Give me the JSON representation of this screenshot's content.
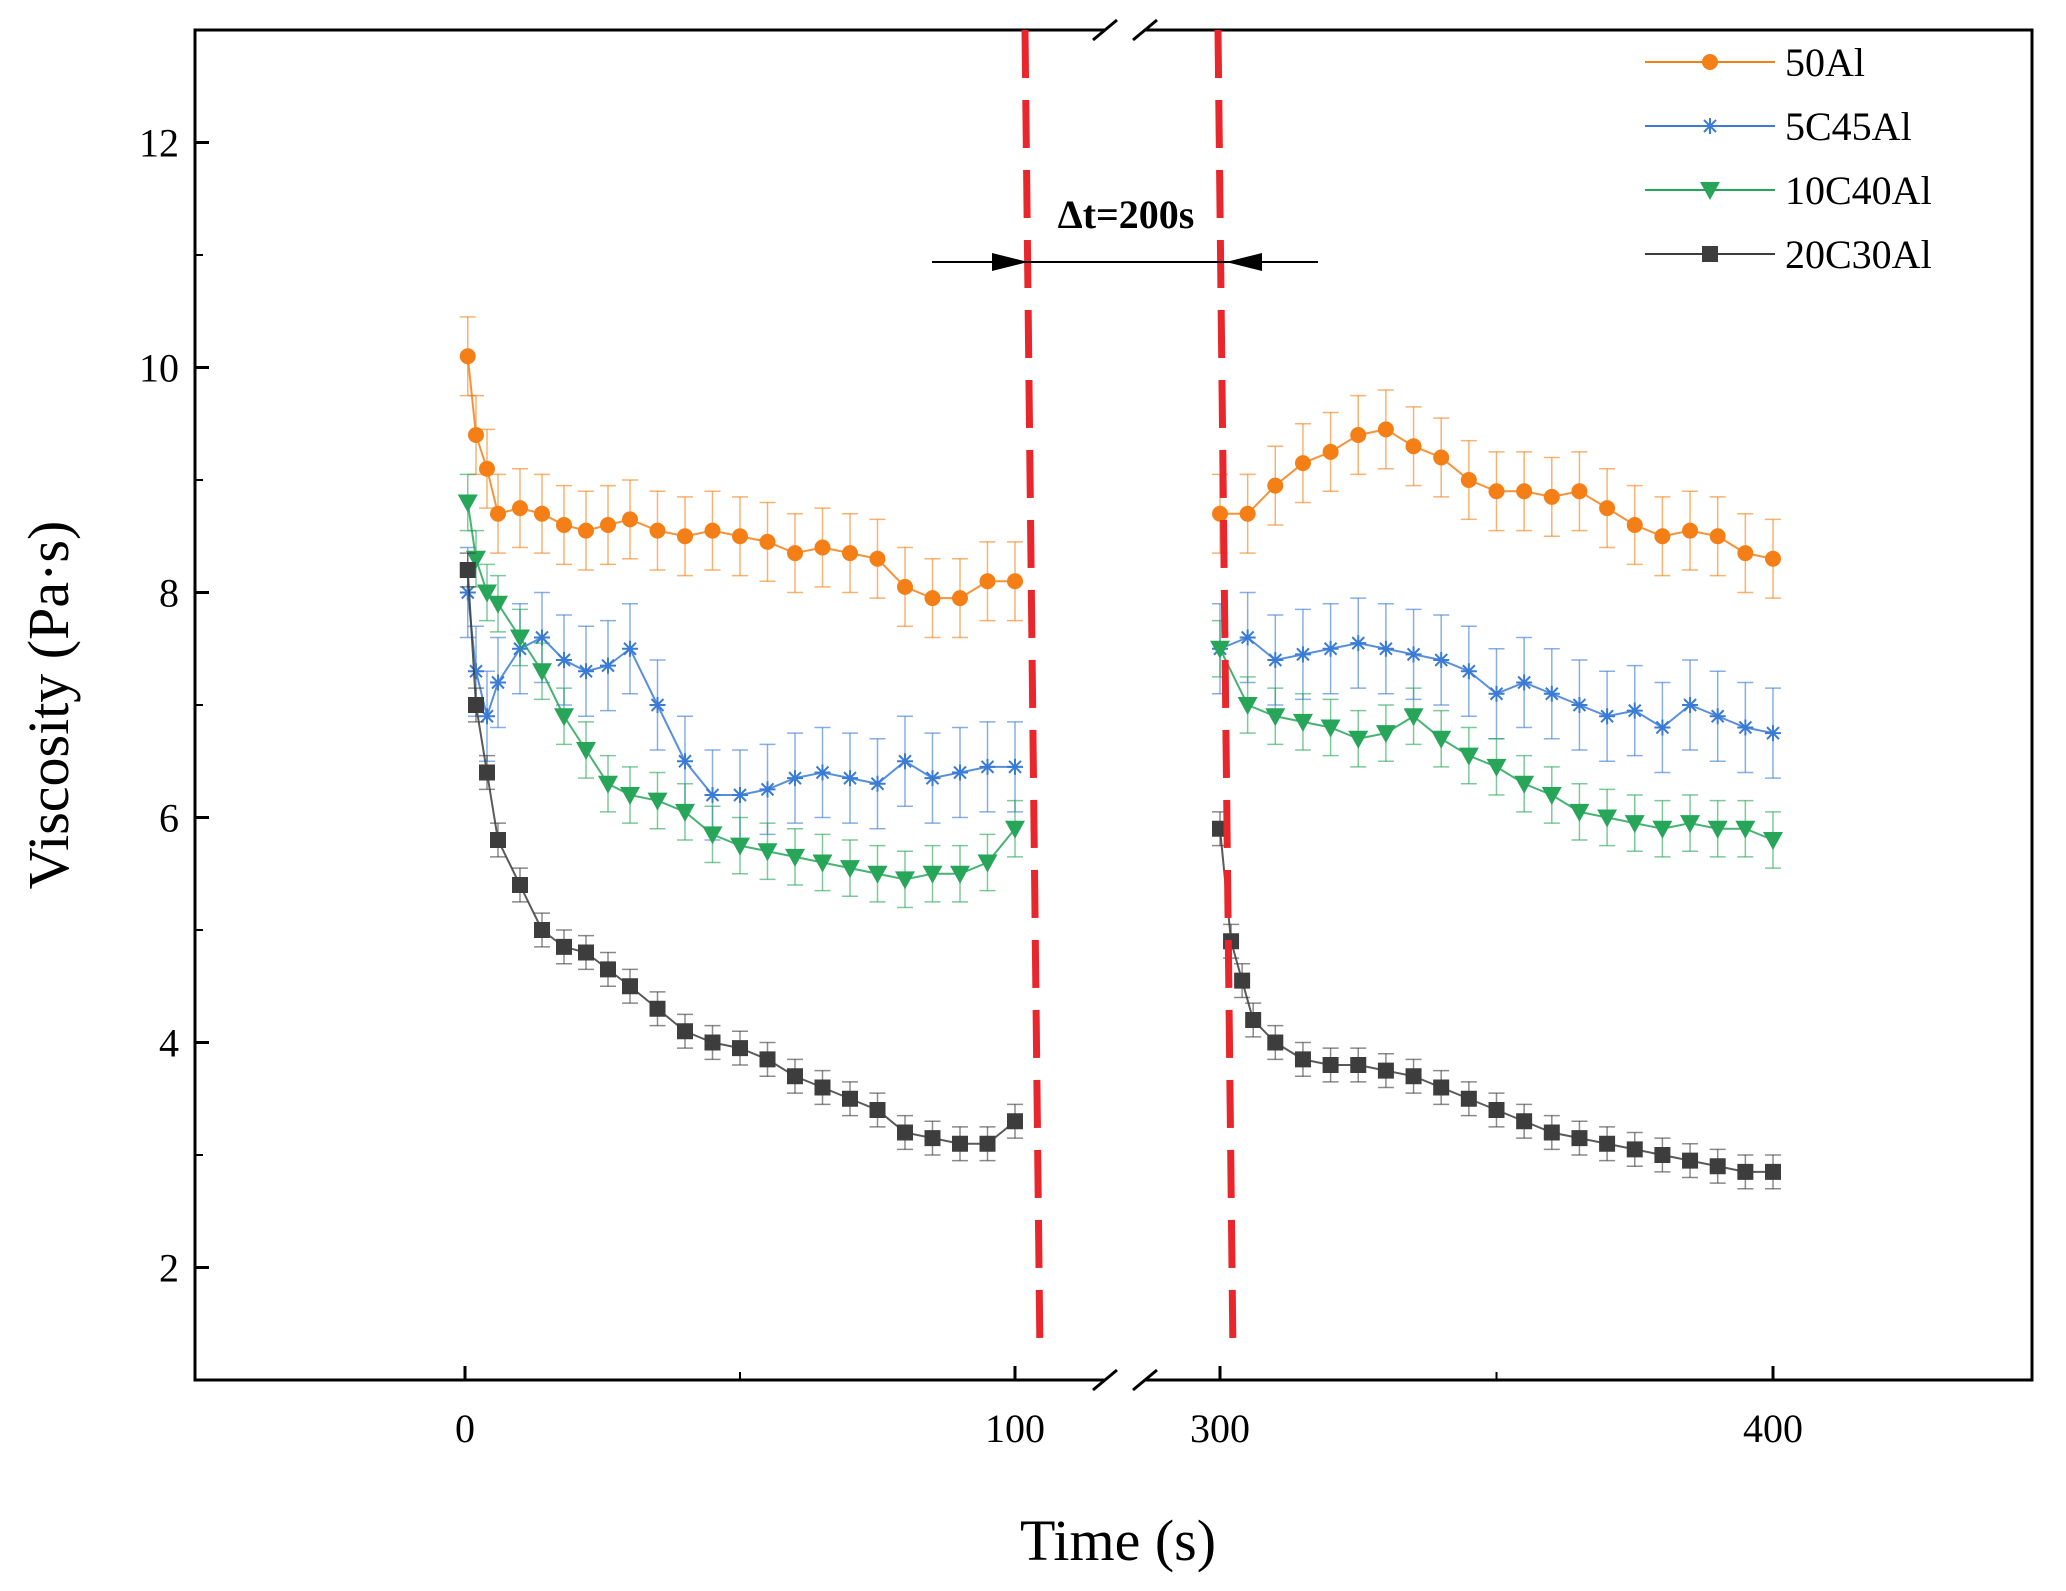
{
  "chart_data": {
    "type": "scatter",
    "xlabel": "Time (s)",
    "ylabel": "Viscosity (Pa·s)",
    "broken_x_axis": true,
    "x_segments": [
      {
        "range": [
          -50,
          105
        ],
        "ticks": [
          0,
          100
        ]
      },
      {
        "range": [
          300,
          445
        ],
        "ticks": [
          300,
          400
        ]
      }
    ],
    "x_tick_labels": [
      "0",
      "100",
      "300",
      "400"
    ],
    "ylim": [
      1,
      13
    ],
    "y_ticks": [
      2,
      4,
      6,
      8,
      10,
      12
    ],
    "y_tick_labels": [
      "2",
      "4",
      "6",
      "8",
      "10",
      "12"
    ],
    "grid": false,
    "legend_position": "top-right",
    "annotation": {
      "text": "Δt=200s",
      "marker_times": [
        100,
        300
      ]
    },
    "colors": {
      "annotation_line": "#e8262b",
      "arrows": "#000000"
    },
    "series": [
      {
        "name": "50Al",
        "marker": "circle",
        "color": "#f47f16",
        "error_bar": 0.35,
        "x": [
          0.5,
          2,
          4,
          6,
          10,
          14,
          18,
          22,
          26,
          30,
          35,
          40,
          45,
          50,
          55,
          60,
          65,
          70,
          75,
          80,
          85,
          90,
          95,
          100,
          300,
          305,
          310,
          315,
          320,
          325,
          330,
          335,
          340,
          345,
          350,
          355,
          360,
          365,
          370,
          375,
          380,
          385,
          390,
          395,
          400
        ],
        "y": [
          10.1,
          9.4,
          9.1,
          8.7,
          8.75,
          8.7,
          8.6,
          8.55,
          8.6,
          8.65,
          8.55,
          8.5,
          8.55,
          8.5,
          8.45,
          8.35,
          8.4,
          8.35,
          8.3,
          8.05,
          7.95,
          7.95,
          8.1,
          8.1,
          8.7,
          8.7,
          8.95,
          9.15,
          9.25,
          9.4,
          9.45,
          9.3,
          9.2,
          9.0,
          8.9,
          8.9,
          8.85,
          8.9,
          8.75,
          8.6,
          8.5,
          8.55,
          8.5,
          8.35,
          8.3
        ]
      },
      {
        "name": "5C45Al",
        "marker": "asterisk",
        "color": "#3a7bd5",
        "error_bar": 0.4,
        "x": [
          0.5,
          2,
          4,
          6,
          10,
          14,
          18,
          22,
          26,
          30,
          35,
          40,
          45,
          50,
          55,
          60,
          65,
          70,
          75,
          80,
          85,
          90,
          95,
          100,
          300,
          305,
          310,
          315,
          320,
          325,
          330,
          335,
          340,
          345,
          350,
          355,
          360,
          365,
          370,
          375,
          380,
          385,
          390,
          395,
          400
        ],
        "y": [
          8.0,
          7.3,
          6.9,
          7.2,
          7.5,
          7.6,
          7.4,
          7.3,
          7.35,
          7.5,
          7.0,
          6.5,
          6.2,
          6.2,
          6.25,
          6.35,
          6.4,
          6.35,
          6.3,
          6.5,
          6.35,
          6.4,
          6.45,
          6.45,
          7.5,
          7.6,
          7.4,
          7.45,
          7.5,
          7.55,
          7.5,
          7.45,
          7.4,
          7.3,
          7.1,
          7.2,
          7.1,
          7.0,
          6.9,
          6.95,
          6.8,
          7.0,
          6.9,
          6.8,
          6.75
        ]
      },
      {
        "name": "10C40Al",
        "marker": "triangle-down",
        "color": "#27a65a",
        "error_bar": 0.25,
        "x": [
          0.5,
          2,
          4,
          6,
          10,
          14,
          18,
          22,
          26,
          30,
          35,
          40,
          45,
          50,
          55,
          60,
          65,
          70,
          75,
          80,
          85,
          90,
          95,
          100,
          300,
          305,
          310,
          315,
          320,
          325,
          330,
          335,
          340,
          345,
          350,
          355,
          360,
          365,
          370,
          375,
          380,
          385,
          390,
          395,
          400
        ],
        "y": [
          8.8,
          8.3,
          8.0,
          7.9,
          7.6,
          7.3,
          6.9,
          6.6,
          6.3,
          6.2,
          6.15,
          6.05,
          5.85,
          5.75,
          5.7,
          5.65,
          5.6,
          5.55,
          5.5,
          5.45,
          5.5,
          5.5,
          5.6,
          5.9,
          7.5,
          7.0,
          6.9,
          6.85,
          6.8,
          6.7,
          6.75,
          6.9,
          6.7,
          6.55,
          6.45,
          6.3,
          6.2,
          6.05,
          6.0,
          5.95,
          5.9,
          5.95,
          5.9,
          5.9,
          5.8
        ]
      },
      {
        "name": "20C30Al",
        "marker": "square",
        "color": "#3d3d3d",
        "error_bar": 0.15,
        "x": [
          0.5,
          2,
          4,
          6,
          10,
          14,
          18,
          22,
          26,
          30,
          35,
          40,
          45,
          50,
          55,
          60,
          65,
          70,
          75,
          80,
          85,
          90,
          95,
          100,
          300,
          302,
          304,
          306,
          310,
          315,
          320,
          325,
          330,
          335,
          340,
          345,
          350,
          355,
          360,
          365,
          370,
          375,
          380,
          385,
          390,
          395,
          400
        ],
        "y": [
          8.2,
          7.0,
          6.4,
          5.8,
          5.4,
          5.0,
          4.85,
          4.8,
          4.65,
          4.5,
          4.3,
          4.1,
          4.0,
          3.95,
          3.85,
          3.7,
          3.6,
          3.5,
          3.4,
          3.2,
          3.15,
          3.1,
          3.1,
          3.3,
          5.9,
          4.9,
          4.55,
          4.2,
          4.0,
          3.85,
          3.8,
          3.8,
          3.75,
          3.7,
          3.6,
          3.5,
          3.4,
          3.3,
          3.2,
          3.15,
          3.1,
          3.05,
          3.0,
          2.95,
          2.9,
          2.85,
          2.85
        ]
      }
    ]
  }
}
